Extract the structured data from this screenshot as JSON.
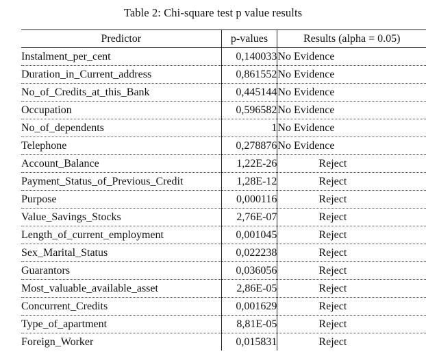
{
  "caption": "Table 2: Chi-square test p value  results",
  "headers": {
    "predictor": "Predictor",
    "pvalue": "p-values",
    "result": "Results (alpha = 0.05)"
  },
  "rows": [
    {
      "predictor": "Instalment_per_cent",
      "p": "0,140033",
      "result": "No Evidence"
    },
    {
      "predictor": "Duration_in_Current_address",
      "p": "0,861552",
      "result": "No Evidence"
    },
    {
      "predictor": "No_of_Credits_at_this_Bank",
      "p": "0,445144",
      "result": "No Evidence"
    },
    {
      "predictor": "Occupation",
      "p": "0,596582",
      "result": "No Evidence"
    },
    {
      "predictor": "No_of_dependents",
      "p": "1",
      "result": "No Evidence"
    },
    {
      "predictor": "Telephone",
      "p": "0,278876",
      "result": "No Evidence"
    },
    {
      "predictor": "Account_Balance",
      "p": "1,22E-26",
      "result": "Reject"
    },
    {
      "predictor": "Payment_Status_of_Previous_Credit",
      "p": "1,28E-12",
      "result": "Reject"
    },
    {
      "predictor": "Purpose",
      "p": "0,000116",
      "result": "Reject"
    },
    {
      "predictor": "Value_Savings_Stocks",
      "p": "2,76E-07",
      "result": "Reject"
    },
    {
      "predictor": "Length_of_current_employment",
      "p": "0,001045",
      "result": "Reject"
    },
    {
      "predictor": "Sex_Marital_Status",
      "p": "0,022238",
      "result": "Reject"
    },
    {
      "predictor": "Guarantors",
      "p": "0,036056",
      "result": "Reject"
    },
    {
      "predictor": "Most_valuable_available_asset",
      "p": "2,86E-05",
      "result": "Reject"
    },
    {
      "predictor": "Concurrent_Credits",
      "p": "0,001629",
      "result": "Reject"
    },
    {
      "predictor": "Type_of_apartment",
      "p": "8,81E-05",
      "result": "Reject"
    },
    {
      "predictor": "Foreign_Worker",
      "p": "0,015831",
      "result": "Reject"
    }
  ]
}
